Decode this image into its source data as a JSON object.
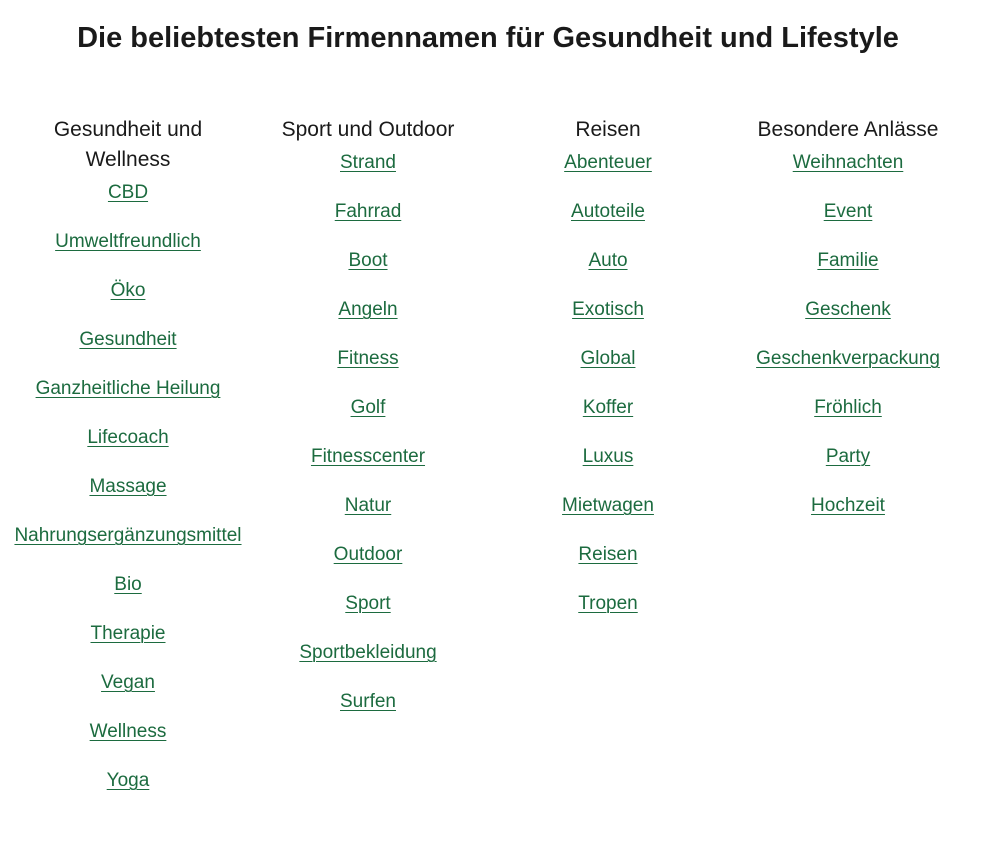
{
  "page": {
    "title": "Die beliebtesten Firmennamen für Gesundheit und Lifestyle"
  },
  "colors": {
    "link": "#1c6b3f",
    "heading": "#1a1a1a",
    "background": "#ffffff"
  },
  "columns": [
    {
      "heading": "Gesundheit und Wellness",
      "links": [
        "CBD",
        "Umweltfreundlich",
        "Öko",
        "Gesundheit",
        "Ganzheitliche Heilung",
        "Lifecoach",
        "Massage",
        "Nahrungsergänzungsmittel",
        "Bio",
        "Therapie",
        "Vegan",
        "Wellness",
        "Yoga"
      ]
    },
    {
      "heading": "Sport und Outdoor",
      "links": [
        "Strand",
        "Fahrrad",
        "Boot",
        "Angeln",
        "Fitness",
        "Golf",
        "Fitnesscenter",
        "Natur",
        "Outdoor",
        "Sport",
        "Sportbekleidung",
        "Surfen"
      ]
    },
    {
      "heading": "Reisen",
      "links": [
        "Abenteuer",
        "Autoteile",
        "Auto",
        "Exotisch",
        "Global",
        "Koffer",
        "Luxus",
        "Mietwagen",
        "Reisen",
        "Tropen"
      ]
    },
    {
      "heading": "Besondere Anlässe",
      "links": [
        "Weihnachten",
        "Event",
        "Familie",
        "Geschenk",
        "Geschenkverpackung",
        "Fröhlich",
        "Party",
        "Hochzeit"
      ]
    }
  ]
}
